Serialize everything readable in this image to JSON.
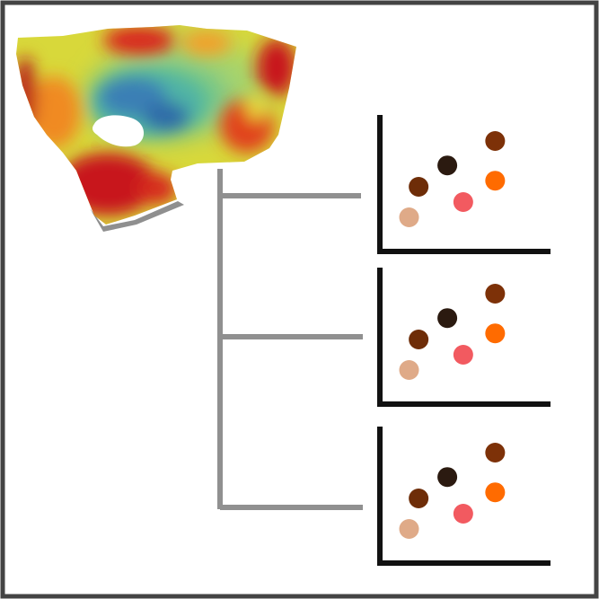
{
  "frame": {
    "border_color": "#444444",
    "background": "#ffffff"
  },
  "heatmap": {
    "icon": "colored-surface-heatmap-icon",
    "palette": [
      "#1f5fa0",
      "#3b88b8",
      "#4fb3a6",
      "#8fcf7a",
      "#d8d83a",
      "#f2a02a",
      "#e1421f",
      "#b8161c"
    ]
  },
  "connector": {
    "color": "#909090",
    "branch_count": 3
  },
  "plot_axes_color": "#111111",
  "scatter_points": [
    {
      "x": 1.0,
      "y": 1.0,
      "color": "#dfaa88"
    },
    {
      "x": 1.3,
      "y": 2.0,
      "color": "#6e2d08"
    },
    {
      "x": 2.2,
      "y": 2.7,
      "color": "#2b1a10"
    },
    {
      "x": 2.7,
      "y": 1.5,
      "color": "#f25a60"
    },
    {
      "x": 3.7,
      "y": 3.5,
      "color": "#7d3108"
    },
    {
      "x": 3.7,
      "y": 2.2,
      "color": "#ff6b00"
    }
  ],
  "plot_count": 3
}
